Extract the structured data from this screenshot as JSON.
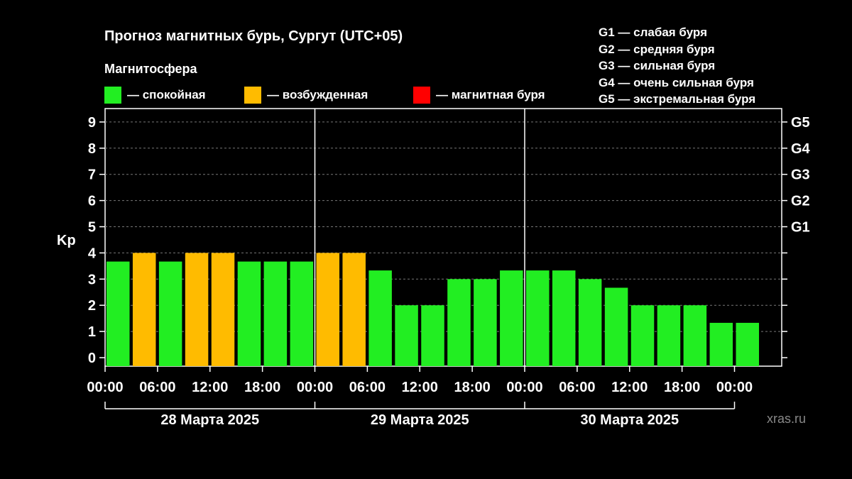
{
  "title": "Прогноз магнитных бурь, Сургут (UTC+05)",
  "subtitle": "Магнитосфера",
  "legend": [
    {
      "label": "— спокойная",
      "color": "#22ee22"
    },
    {
      "label": "— возбужденная",
      "color": "#ffbb00"
    },
    {
      "label": "— магнитная буря",
      "color": "#ff0000"
    }
  ],
  "g_legend": [
    "G1 — слабая буря",
    "G2 — средняя буря",
    "G3 — сильная буря",
    "G4 — очень сильная буря",
    "G5 — экстремальная буря"
  ],
  "watermark": "xras.ru",
  "chart_data": {
    "type": "bar",
    "ylabel": "Kp",
    "ylim": [
      0,
      9
    ],
    "y_ticks": [
      "0",
      "1",
      "2",
      "3",
      "4",
      "5",
      "6",
      "7",
      "8",
      "9"
    ],
    "g_ticks": [
      {
        "label": "G1",
        "value": 5
      },
      {
        "label": "G2",
        "value": 6
      },
      {
        "label": "G3",
        "value": 7
      },
      {
        "label": "G4",
        "value": 8
      },
      {
        "label": "G5",
        "value": 9
      }
    ],
    "x_tick_labels": [
      "00:00",
      "06:00",
      "12:00",
      "18:00",
      "00:00",
      "06:00",
      "12:00",
      "18:00",
      "00:00",
      "06:00",
      "12:00",
      "18:00",
      "00:00"
    ],
    "days": [
      "28 Марта 2025",
      "29 Марта 2025",
      "30 Марта 2025"
    ],
    "interval_hours": 3,
    "values": [
      3.67,
      4,
      3.67,
      4,
      4,
      3.67,
      3.67,
      3.67,
      4,
      4,
      3.33,
      2,
      2,
      3,
      3,
      3.33,
      3.33,
      3.33,
      3,
      2.67,
      2,
      2,
      2,
      1.33,
      1.33
    ],
    "levels": [
      "calm",
      "active",
      "calm",
      "active",
      "active",
      "calm",
      "calm",
      "calm",
      "active",
      "active",
      "calm",
      "calm",
      "calm",
      "calm",
      "calm",
      "calm",
      "calm",
      "calm",
      "calm",
      "calm",
      "calm",
      "calm",
      "calm",
      "calm",
      "calm"
    ],
    "colors": {
      "calm": "#22ee22",
      "active": "#ffbb00",
      "storm": "#ff0000"
    },
    "grid": true
  }
}
